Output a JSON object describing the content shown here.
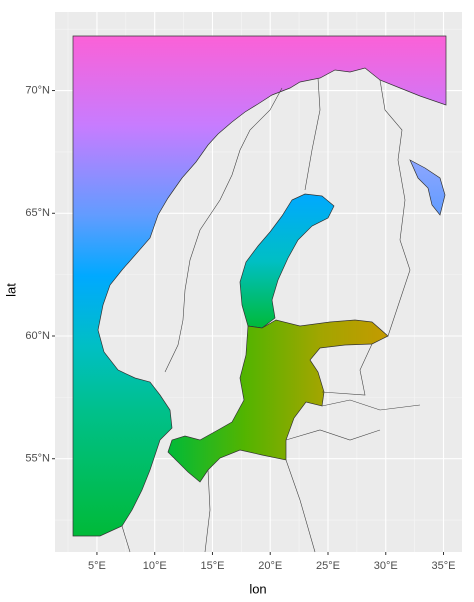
{
  "chart_data": {
    "type": "map",
    "x_label": "lon",
    "y_label": "lat",
    "xlim": [
      1.37,
      36.6
    ],
    "ylim": [
      51.2,
      73.2
    ],
    "xticks": [
      {
        "value": 5,
        "label": "5°E"
      },
      {
        "value": 10,
        "label": "10°E"
      },
      {
        "value": 15,
        "label": "15°E"
      },
      {
        "value": 20,
        "label": "20°E"
      },
      {
        "value": 25,
        "label": "25°E"
      },
      {
        "value": 30,
        "label": "30°E"
      },
      {
        "value": 35,
        "label": "35°E"
      }
    ],
    "yticks": [
      {
        "value": 55,
        "label": "55°N"
      },
      {
        "value": 60,
        "label": "60°N"
      },
      {
        "value": 65,
        "label": "65°N"
      },
      {
        "value": 70,
        "label": "70°N"
      }
    ],
    "grid": true
  }
}
